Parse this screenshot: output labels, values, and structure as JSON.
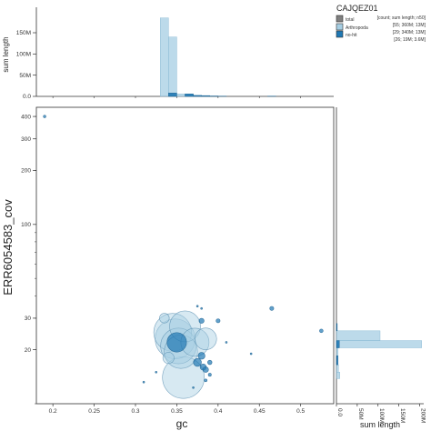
{
  "chart_data": {
    "type": "scatter",
    "title": "CAJQEZ01",
    "legend": {
      "placement": "top-right",
      "header": "[count; sum length; n50]",
      "entries": [
        {
          "name": "total",
          "stats": "[55; 360M; 13M]",
          "color": "#808080"
        },
        {
          "name": "Arthropoda",
          "stats": "[29; 340M; 13M]",
          "color": "#a6cee3"
        },
        {
          "name": "no-hit",
          "stats": "[26; 19M; 3.6M]",
          "color": "#1f78b4"
        }
      ]
    },
    "xlabel": "gc",
    "ylabel": "ERR6054583_cov",
    "xlim": [
      0.18,
      0.54
    ],
    "ylim": [
      10,
      450
    ],
    "y_scale": "log",
    "x_ticks": [
      0.2,
      0.25,
      0.3,
      0.35,
      0.4,
      0.45,
      0.5
    ],
    "x_tick_labels": [
      "0.2",
      "0.25",
      "0.3",
      "0.35",
      "0.4",
      "0.45",
      "0.5"
    ],
    "y_ticks": [
      20,
      30,
      100,
      200,
      300,
      400
    ],
    "y_tick_labels": [
      "20",
      "30",
      "100",
      "200",
      "300",
      "400"
    ],
    "points": [
      {
        "x": 0.19,
        "y": 400,
        "length_M": 0.2,
        "series": "no-hit"
      },
      {
        "x": 0.345,
        "y": 25,
        "length_M": 45,
        "series": "Arthropoda"
      },
      {
        "x": 0.348,
        "y": 23,
        "length_M": 50,
        "series": "Arthropoda"
      },
      {
        "x": 0.352,
        "y": 21,
        "length_M": 40,
        "series": "Arthropoda"
      },
      {
        "x": 0.355,
        "y": 19.5,
        "length_M": 35,
        "series": "Arthropoda"
      },
      {
        "x": 0.358,
        "y": 14,
        "length_M": 55,
        "series": "Arthropoda"
      },
      {
        "x": 0.36,
        "y": 27,
        "length_M": 30,
        "series": "Arthropoda"
      },
      {
        "x": 0.372,
        "y": 22,
        "length_M": 25,
        "series": "Arthropoda"
      },
      {
        "x": 0.385,
        "y": 23,
        "length_M": 15,
        "series": "Arthropoda"
      },
      {
        "x": 0.35,
        "y": 22,
        "length_M": 12,
        "series": "no-hit"
      },
      {
        "x": 0.375,
        "y": 17,
        "length_M": 2.0,
        "series": "no-hit"
      },
      {
        "x": 0.38,
        "y": 18.5,
        "length_M": 1.5,
        "series": "no-hit"
      },
      {
        "x": 0.382,
        "y": 16,
        "length_M": 1.2,
        "series": "no-hit"
      },
      {
        "x": 0.385,
        "y": 15.5,
        "length_M": 1.0,
        "series": "no-hit"
      },
      {
        "x": 0.38,
        "y": 29,
        "length_M": 0.8,
        "series": "no-hit"
      },
      {
        "x": 0.39,
        "y": 17,
        "length_M": 0.6,
        "series": "no-hit"
      },
      {
        "x": 0.4,
        "y": 29,
        "length_M": 0.5,
        "series": "no-hit"
      },
      {
        "x": 0.465,
        "y": 34,
        "length_M": 0.5,
        "series": "no-hit"
      },
      {
        "x": 0.525,
        "y": 25.5,
        "length_M": 0.4,
        "series": "no-hit"
      },
      {
        "x": 0.39,
        "y": 14.5,
        "length_M": 0.3,
        "series": "no-hit"
      },
      {
        "x": 0.385,
        "y": 13.5,
        "length_M": 0.25,
        "series": "no-hit"
      },
      {
        "x": 0.38,
        "y": 34,
        "length_M": 0.1,
        "series": "no-hit"
      },
      {
        "x": 0.375,
        "y": 35,
        "length_M": 0.1,
        "series": "no-hit"
      },
      {
        "x": 0.31,
        "y": 13.2,
        "length_M": 0.1,
        "series": "no-hit"
      },
      {
        "x": 0.325,
        "y": 15,
        "length_M": 0.1,
        "series": "no-hit"
      },
      {
        "x": 0.37,
        "y": 12.3,
        "length_M": 0.1,
        "series": "no-hit"
      },
      {
        "x": 0.41,
        "y": 22,
        "length_M": 0.1,
        "series": "no-hit"
      },
      {
        "x": 0.44,
        "y": 19,
        "length_M": 0.1,
        "series": "no-hit"
      },
      {
        "x": 0.335,
        "y": 30,
        "length_M": 3,
        "series": "Arthropoda"
      },
      {
        "x": 0.34,
        "y": 18,
        "length_M": 4,
        "series": "Arthropoda"
      }
    ],
    "top_histogram": {
      "ylabel": "sum length",
      "y_ticks": [
        0,
        50,
        100,
        150
      ],
      "y_tick_labels": [
        "0.0",
        "50M",
        "100M",
        "150M"
      ],
      "ylim": [
        0,
        210
      ],
      "bin_width": 0.01,
      "bins": [
        {
          "x0": 0.33,
          "value": 185,
          "series": "Arthropoda"
        },
        {
          "x0": 0.34,
          "value": 140,
          "series": "Arthropoda"
        },
        {
          "x0": 0.35,
          "value": 6,
          "series": "Arthropoda"
        },
        {
          "x0": 0.36,
          "value": 5,
          "series": "Arthropoda"
        },
        {
          "x0": 0.37,
          "value": 3,
          "series": "Arthropoda"
        },
        {
          "x0": 0.38,
          "value": 2,
          "series": "Arthropoda"
        },
        {
          "x0": 0.34,
          "value": 8,
          "series": "no-hit"
        },
        {
          "x0": 0.36,
          "value": 6,
          "series": "no-hit"
        },
        {
          "x0": 0.37,
          "value": 2,
          "series": "no-hit"
        },
        {
          "x0": 0.38,
          "value": 1.5,
          "series": "no-hit"
        },
        {
          "x0": 0.39,
          "value": 1,
          "series": "no-hit"
        },
        {
          "x0": 0.4,
          "value": 0.5,
          "series": "no-hit"
        },
        {
          "x0": 0.46,
          "value": 0.5,
          "series": "no-hit"
        }
      ]
    },
    "right_histogram": {
      "xlabel": "sum length",
      "x_ticks": [
        0,
        50,
        100,
        150,
        200
      ],
      "x_tick_labels": [
        "0.0",
        "50M",
        "100M",
        "150M",
        "200M"
      ],
      "xlim": [
        0,
        210
      ],
      "bins": [
        {
          "y0": 20.5,
          "y1": 22.5,
          "value": 205,
          "series": "Arthropoda"
        },
        {
          "y0": 22.5,
          "y1": 25.5,
          "value": 105,
          "series": "Arthropoda"
        },
        {
          "y0": 13.8,
          "y1": 15,
          "value": 8,
          "series": "Arthropoda"
        },
        {
          "y0": 15,
          "y1": 16.5,
          "value": 5,
          "series": "Arthropoda"
        },
        {
          "y0": 18.5,
          "y1": 20.5,
          "value": 4,
          "series": "Arthropoda"
        },
        {
          "y0": 20.5,
          "y1": 22.5,
          "value": 7,
          "series": "no-hit"
        },
        {
          "y0": 16.5,
          "y1": 18.5,
          "value": 4,
          "series": "no-hit"
        },
        {
          "y0": 25.5,
          "y1": 28,
          "value": 2,
          "series": "no-hit"
        }
      ]
    }
  }
}
